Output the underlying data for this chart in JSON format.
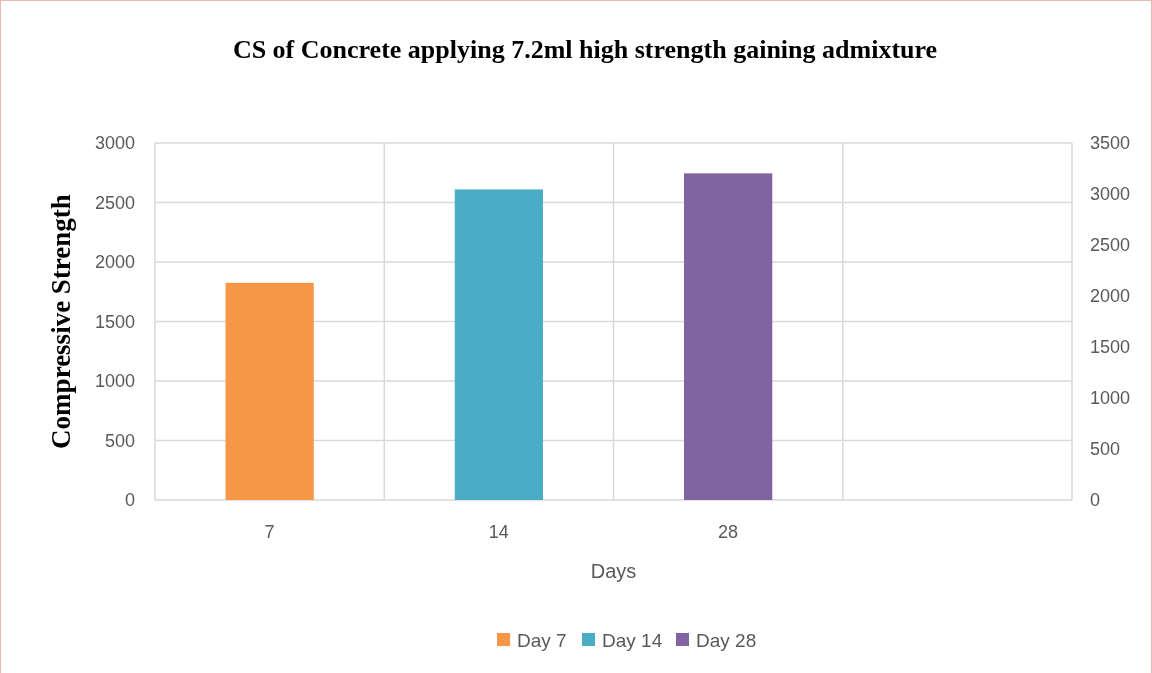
{
  "chart_data": {
    "type": "bar",
    "title": "CS of Concrete applying 7.2ml high strength gaining admixture",
    "xlabel": "Days",
    "ylabel": "Compressive Strength",
    "categories": [
      "7",
      "14",
      "28",
      null
    ],
    "series": [
      {
        "name": "Day 7",
        "color": "#f79646",
        "values": [
          1825,
          null,
          null,
          null
        ]
      },
      {
        "name": "Day 14",
        "color": "#4bacc6",
        "values": [
          null,
          2610,
          null,
          null
        ]
      },
      {
        "name": "Day 28",
        "color": "#8064a2",
        "values": [
          null,
          null,
          2745,
          null
        ]
      }
    ],
    "ylim": [
      0,
      3000
    ],
    "yticks": [
      0,
      500,
      1000,
      1500,
      2000,
      2500,
      3000
    ],
    "y2lim": [
      0,
      3500
    ],
    "y2ticks": [
      0,
      500,
      1000,
      1500,
      2000,
      2500,
      3000,
      3500
    ],
    "grid": true,
    "legend": "bottom"
  }
}
